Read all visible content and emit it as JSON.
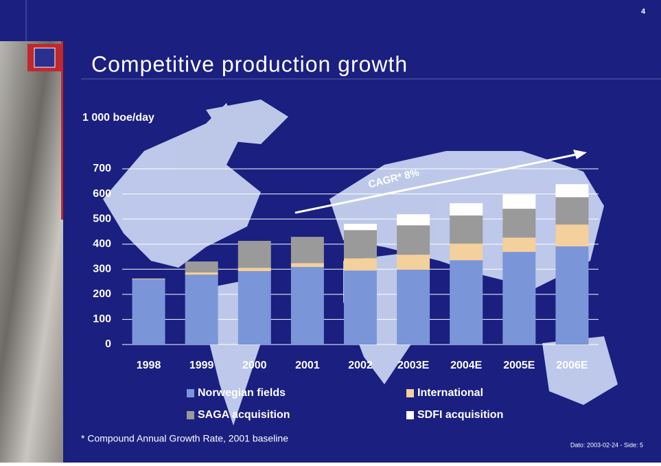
{
  "page_number": "4",
  "footer": "Dato: 2003-02-24 - Side: 5",
  "chart_data": {
    "type": "stacked_bar",
    "title": "Competitive production growth",
    "y_label": "1 000 boe/day",
    "annotation": "CAGR* 8%",
    "note": "* Compound Annual Growth Rate, 2001 baseline",
    "categories": [
      "1998",
      "1999",
      "2000",
      "2001",
      "2002",
      "2003E",
      "2004E",
      "2005E",
      "2006E"
    ],
    "series": [
      {
        "name": "Norwegian fields",
        "color": "#7b96d8",
        "values": [
          260,
          278,
          292,
          309,
          295,
          298,
          336,
          369,
          391
        ]
      },
      {
        "name": "International",
        "color": "#f3d09c",
        "values": [
          3,
          10,
          14,
          16,
          49,
          60,
          66,
          57,
          87
        ]
      },
      {
        "name": "SAGA acquisition",
        "color": "#9a9a9a",
        "values": [
          0,
          43,
          107,
          104,
          112,
          117,
          112,
          115,
          109
        ]
      },
      {
        "name": "SDFI acquisition",
        "color": "#ffffff",
        "values": [
          0,
          0,
          0,
          0,
          25,
          44,
          49,
          57,
          52
        ]
      }
    ],
    "ylim": [
      0,
      700
    ],
    "yticks": [
      0,
      100,
      200,
      300,
      400,
      500,
      600,
      700
    ],
    "grid": true,
    "legend": "bottom"
  }
}
